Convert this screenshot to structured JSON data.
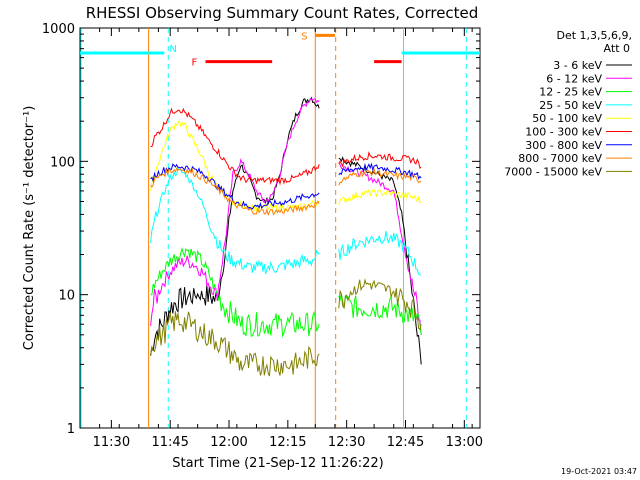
{
  "chart_data": {
    "type": "line",
    "title": "RHESSI Observing Summary Count Rates, Corrected",
    "xlabel": "Start Time (21-Sep-12 11:26:22)",
    "ylabel": "Corrected Count Rate (s⁻¹ detector⁻¹)",
    "yscale": "log",
    "ylim": [
      1,
      1000
    ],
    "xlim_minutes": [
      -4,
      98
    ],
    "x_tick_labels": [
      "11:30",
      "11:45",
      "12:00",
      "12:15",
      "12:30",
      "12:45",
      "13:00"
    ],
    "x_tick_minutes": [
      4,
      19,
      34,
      49,
      64,
      79,
      94
    ],
    "y_tick_labels": [
      "1",
      "10",
      "100",
      "1000"
    ],
    "y_tick_values": [
      1,
      10,
      100,
      1000
    ],
    "legend_header": [
      "Det 1,3,5,6,9,",
      "Att 0"
    ],
    "legend_placement": "right",
    "timestamp": "19-Oct-2021 03:47",
    "series": [
      {
        "name": "3 - 6 keV",
        "color": "#000000",
        "x": [
          14,
          15,
          17,
          19,
          21,
          23,
          25,
          27,
          29,
          31,
          33,
          35,
          37,
          39,
          41,
          43,
          45,
          47,
          49,
          51,
          53,
          55,
          57,
          61,
          62,
          64,
          66,
          68,
          70,
          72,
          74,
          76,
          78,
          80,
          82,
          83
        ],
        "y": [
          3.5,
          5,
          6,
          8,
          9,
          9.5,
          10,
          10,
          9.8,
          9,
          20,
          60,
          95,
          75,
          55,
          50,
          52,
          80,
          150,
          220,
          280,
          300,
          250,
          null,
          110,
          100,
          95,
          90,
          85,
          80,
          75,
          70,
          40,
          15,
          5,
          3
        ]
      },
      {
        "name": "6 - 12 keV",
        "color": "#ff00ff",
        "x": [
          14,
          15,
          17,
          19,
          21,
          23,
          25,
          27,
          29,
          31,
          33,
          35,
          37,
          39,
          41,
          43,
          45,
          47,
          49,
          51,
          53,
          55,
          57,
          61,
          62,
          64,
          66,
          68,
          70,
          72,
          74,
          76,
          78,
          80,
          82,
          83
        ],
        "y": [
          7,
          9,
          12,
          15,
          17,
          18,
          17,
          15,
          12,
          10,
          25,
          80,
          100,
          80,
          60,
          50,
          55,
          80,
          140,
          200,
          260,
          300,
          280,
          null,
          95,
          90,
          85,
          80,
          75,
          70,
          65,
          60,
          30,
          15,
          8,
          5
        ]
      },
      {
        "name": "12 - 25 keV",
        "color": "#00ff00",
        "x": [
          14,
          15,
          17,
          19,
          21,
          23,
          25,
          27,
          29,
          31,
          33,
          35,
          37,
          39,
          41,
          43,
          45,
          47,
          49,
          51,
          53,
          55,
          57,
          61,
          62,
          64,
          66,
          68,
          70,
          72,
          74,
          76,
          78,
          80,
          82,
          83
        ],
        "y": [
          10,
          12,
          15,
          18,
          20,
          22,
          20,
          18,
          14,
          10,
          8,
          7,
          6,
          6,
          6,
          6,
          6,
          6,
          6,
          6,
          6,
          6,
          6,
          null,
          9,
          8.5,
          8,
          8,
          8,
          8,
          8,
          8,
          7.5,
          7,
          6.5,
          5
        ]
      },
      {
        "name": "25 - 50 keV",
        "color": "#00ffff",
        "x": [
          14,
          15,
          17,
          19,
          21,
          23,
          25,
          27,
          29,
          31,
          33,
          35,
          37,
          39,
          41,
          43,
          45,
          47,
          49,
          51,
          53,
          55,
          57,
          61,
          62,
          64,
          66,
          68,
          70,
          72,
          74,
          76,
          78,
          80,
          82,
          83
        ],
        "y": [
          25,
          35,
          55,
          75,
          85,
          80,
          65,
          50,
          35,
          25,
          20,
          18,
          17,
          16,
          16,
          16,
          16,
          16,
          17,
          17,
          18,
          18,
          20,
          null,
          20,
          22,
          24,
          25,
          26,
          27,
          27,
          26,
          24,
          20,
          16,
          14
        ]
      },
      {
        "name": "50 - 100 keV",
        "color": "#ffff00",
        "x": [
          14,
          15,
          17,
          19,
          21,
          23,
          25,
          27,
          29,
          31,
          33,
          35,
          37,
          39,
          41,
          43,
          45,
          47,
          49,
          51,
          53,
          55,
          57,
          61,
          62,
          64,
          66,
          68,
          70,
          72,
          74,
          76,
          78,
          80,
          82,
          83
        ],
        "y": [
          60,
          80,
          120,
          170,
          200,
          180,
          140,
          110,
          80,
          65,
          55,
          50,
          47,
          46,
          45,
          45,
          45,
          45,
          45,
          45,
          46,
          48,
          50,
          null,
          50,
          52,
          55,
          57,
          58,
          58,
          58,
          57,
          56,
          55,
          52,
          50
        ]
      },
      {
        "name": "100 - 300 keV",
        "color": "#ff0000",
        "x": [
          14,
          15,
          17,
          19,
          21,
          23,
          25,
          27,
          29,
          31,
          33,
          35,
          37,
          39,
          41,
          43,
          45,
          47,
          49,
          51,
          53,
          55,
          57,
          61,
          62,
          64,
          66,
          68,
          70,
          72,
          74,
          76,
          78,
          80,
          82,
          83
        ],
        "y": [
          130,
          150,
          180,
          230,
          250,
          230,
          200,
          170,
          140,
          120,
          100,
          85,
          75,
          72,
          72,
          72,
          72,
          72,
          73,
          75,
          80,
          85,
          95,
          null,
          95,
          100,
          105,
          108,
          110,
          110,
          108,
          106,
          105,
          104,
          100,
          90
        ]
      },
      {
        "name": "300 - 800 keV",
        "color": "#0000ff",
        "x": [
          14,
          15,
          17,
          19,
          21,
          23,
          25,
          27,
          29,
          31,
          33,
          35,
          37,
          39,
          41,
          43,
          45,
          47,
          49,
          51,
          53,
          55,
          57,
          61,
          62,
          64,
          66,
          68,
          70,
          72,
          74,
          76,
          78,
          80,
          82,
          83
        ],
        "y": [
          70,
          78,
          85,
          90,
          92,
          90,
          87,
          82,
          75,
          65,
          58,
          52,
          48,
          46,
          46,
          47,
          48,
          49,
          50,
          52,
          54,
          56,
          58,
          null,
          80,
          85,
          88,
          90,
          90,
          90,
          88,
          86,
          84,
          82,
          78,
          75
        ]
      },
      {
        "name": "800 - 7000 keV",
        "color": "#ff8000",
        "x": [
          14,
          15,
          17,
          19,
          21,
          23,
          25,
          27,
          29,
          31,
          33,
          35,
          37,
          39,
          41,
          43,
          45,
          47,
          49,
          51,
          53,
          55,
          57,
          61,
          62,
          64,
          66,
          68,
          70,
          72,
          74,
          76,
          78,
          80,
          82,
          83
        ],
        "y": [
          65,
          72,
          80,
          85,
          88,
          86,
          82,
          76,
          70,
          62,
          55,
          48,
          45,
          43,
          42,
          42,
          42,
          42,
          43,
          44,
          45,
          47,
          48,
          null,
          70,
          75,
          80,
          82,
          83,
          82,
          80,
          78,
          77,
          76,
          74,
          70
        ]
      },
      {
        "name": "7000 - 15000 keV",
        "color": "#808000",
        "x": [
          14,
          15,
          17,
          19,
          21,
          23,
          25,
          27,
          29,
          31,
          33,
          35,
          37,
          39,
          41,
          43,
          45,
          47,
          49,
          51,
          53,
          55,
          57,
          61,
          62,
          64,
          66,
          68,
          70,
          72,
          74,
          76,
          78,
          80,
          82,
          83
        ],
        "y": [
          4,
          4.5,
          5,
          6,
          6.5,
          6.2,
          5.8,
          5.2,
          4.8,
          4.5,
          4,
          3.5,
          3,
          3,
          3,
          3,
          3,
          3,
          3,
          3,
          3.2,
          3.4,
          3.6,
          null,
          9,
          10,
          11,
          12,
          12,
          11.5,
          11,
          10.5,
          9.5,
          8.5,
          7,
          6
        ]
      }
    ],
    "annotations": {
      "night_label": "N",
      "flare_label": "F",
      "saa_label": "S",
      "night_bars_minutes": [
        [
          -4,
          17.5
        ],
        [
          78,
          98
        ]
      ],
      "night_bars_level": 650,
      "flare_bars_minutes": [
        [
          28,
          45
        ],
        [
          71,
          78
        ]
      ],
      "flare_bars_level": 560,
      "saa_bar_minutes": [
        56,
        61
      ],
      "saa_bar_level": 880,
      "cyan_dashed_minutes": [
        18.5,
        94.5
      ],
      "cyan_solid_minutes": [
        78.5
      ],
      "cyan_edge_minutes": [
        -4
      ],
      "orange_solid_minutes": [
        13.5,
        56
      ],
      "orange_dashed_minutes": [
        61.2
      ],
      "night_color": "#00ffff",
      "flare_color": "#ff0000",
      "saa_color": "#ff8000"
    }
  }
}
